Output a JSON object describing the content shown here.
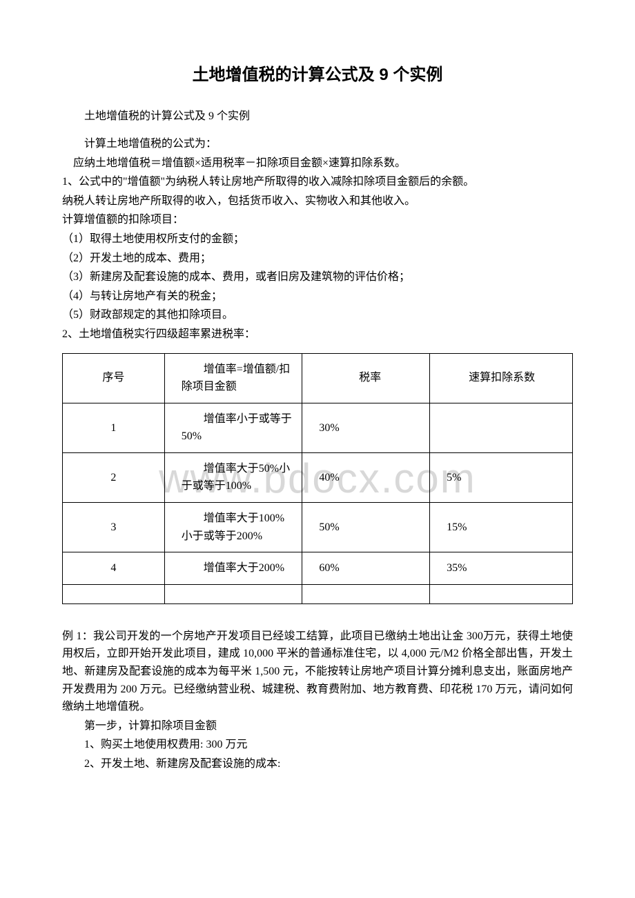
{
  "title": "土地增值税的计算公式及 9 个实例",
  "subtitle": "土地增值税的计算公式及 9 个实例",
  "intro_heading": "计算土地增值税的公式为：",
  "formula": "应纳土地增值税＝增值额×适用税率－扣除项目金额×速算扣除系数。",
  "point1_a": "1、公式中的\"增值额\"为纳税人转让房地产所取得的收入减除扣除项目金额后的余额。",
  "point1_b": "纳税人转让房地产所取得的收入，包括货币收入、实物收入和其他收入。",
  "deduct_heading": "计算增值额的扣除项目：",
  "deduct_1": "（1）取得土地使用权所支付的金额；",
  "deduct_2": "（2）开发土地的成本、费用；",
  "deduct_3": "（3）新建房及配套设施的成本、费用，或者旧房及建筑物的评估价格；",
  "deduct_4": "（4）与转让房地产有关的税金；",
  "deduct_5": "（5）财政部规定的其他扣除项目。",
  "point2": "2、土地增值税实行四级超率累进税率：",
  "table": {
    "headers": {
      "seq": "序号",
      "rate_desc": "增值率=增值额/扣除项目金额",
      "tax_rate": "税率",
      "deduct_coef": "速算扣除系数"
    },
    "rows": [
      {
        "seq": "1",
        "desc": "增值率小于或等于 50%",
        "rate": "30%",
        "coef": ""
      },
      {
        "seq": "2",
        "desc": "增值率大于50%小于或等于100%",
        "rate": "40%",
        "coef": "5%"
      },
      {
        "seq": "3",
        "desc": "增值率大于100%小于或等于200%",
        "rate": "50%",
        "coef": "15%"
      },
      {
        "seq": "4",
        "desc": "增值率大于200%",
        "rate": "60%",
        "coef": "35%"
      }
    ]
  },
  "watermark": "www.bdocx.com",
  "example1": " 例 1：我公司开发的一个房地产开发项目已经竣工结算，此项目已缴纳土地出让金 300万元，获得土地使用权后，立即开始开发此项目，建成 10,000 平米的普通标准住宅，以 4,000 元/M2 价格全部出售，开发土地、新建房及配套设施的成本为每平米 1,500 元，不能按转让房地产项目计算分摊利息支出，账面房地产开发费用为 200 万元。已经缴纳营业税、城建税、教育费附加、地方教育费、印花税 170 万元，请问如何缴纳土地增值税。",
  "step1": "第一步，计算扣除项目金额",
  "step1_1": "1、购买土地使用权费用:   300 万元",
  "step1_2": "2、开发土地、新建房及配套设施的成本:"
}
